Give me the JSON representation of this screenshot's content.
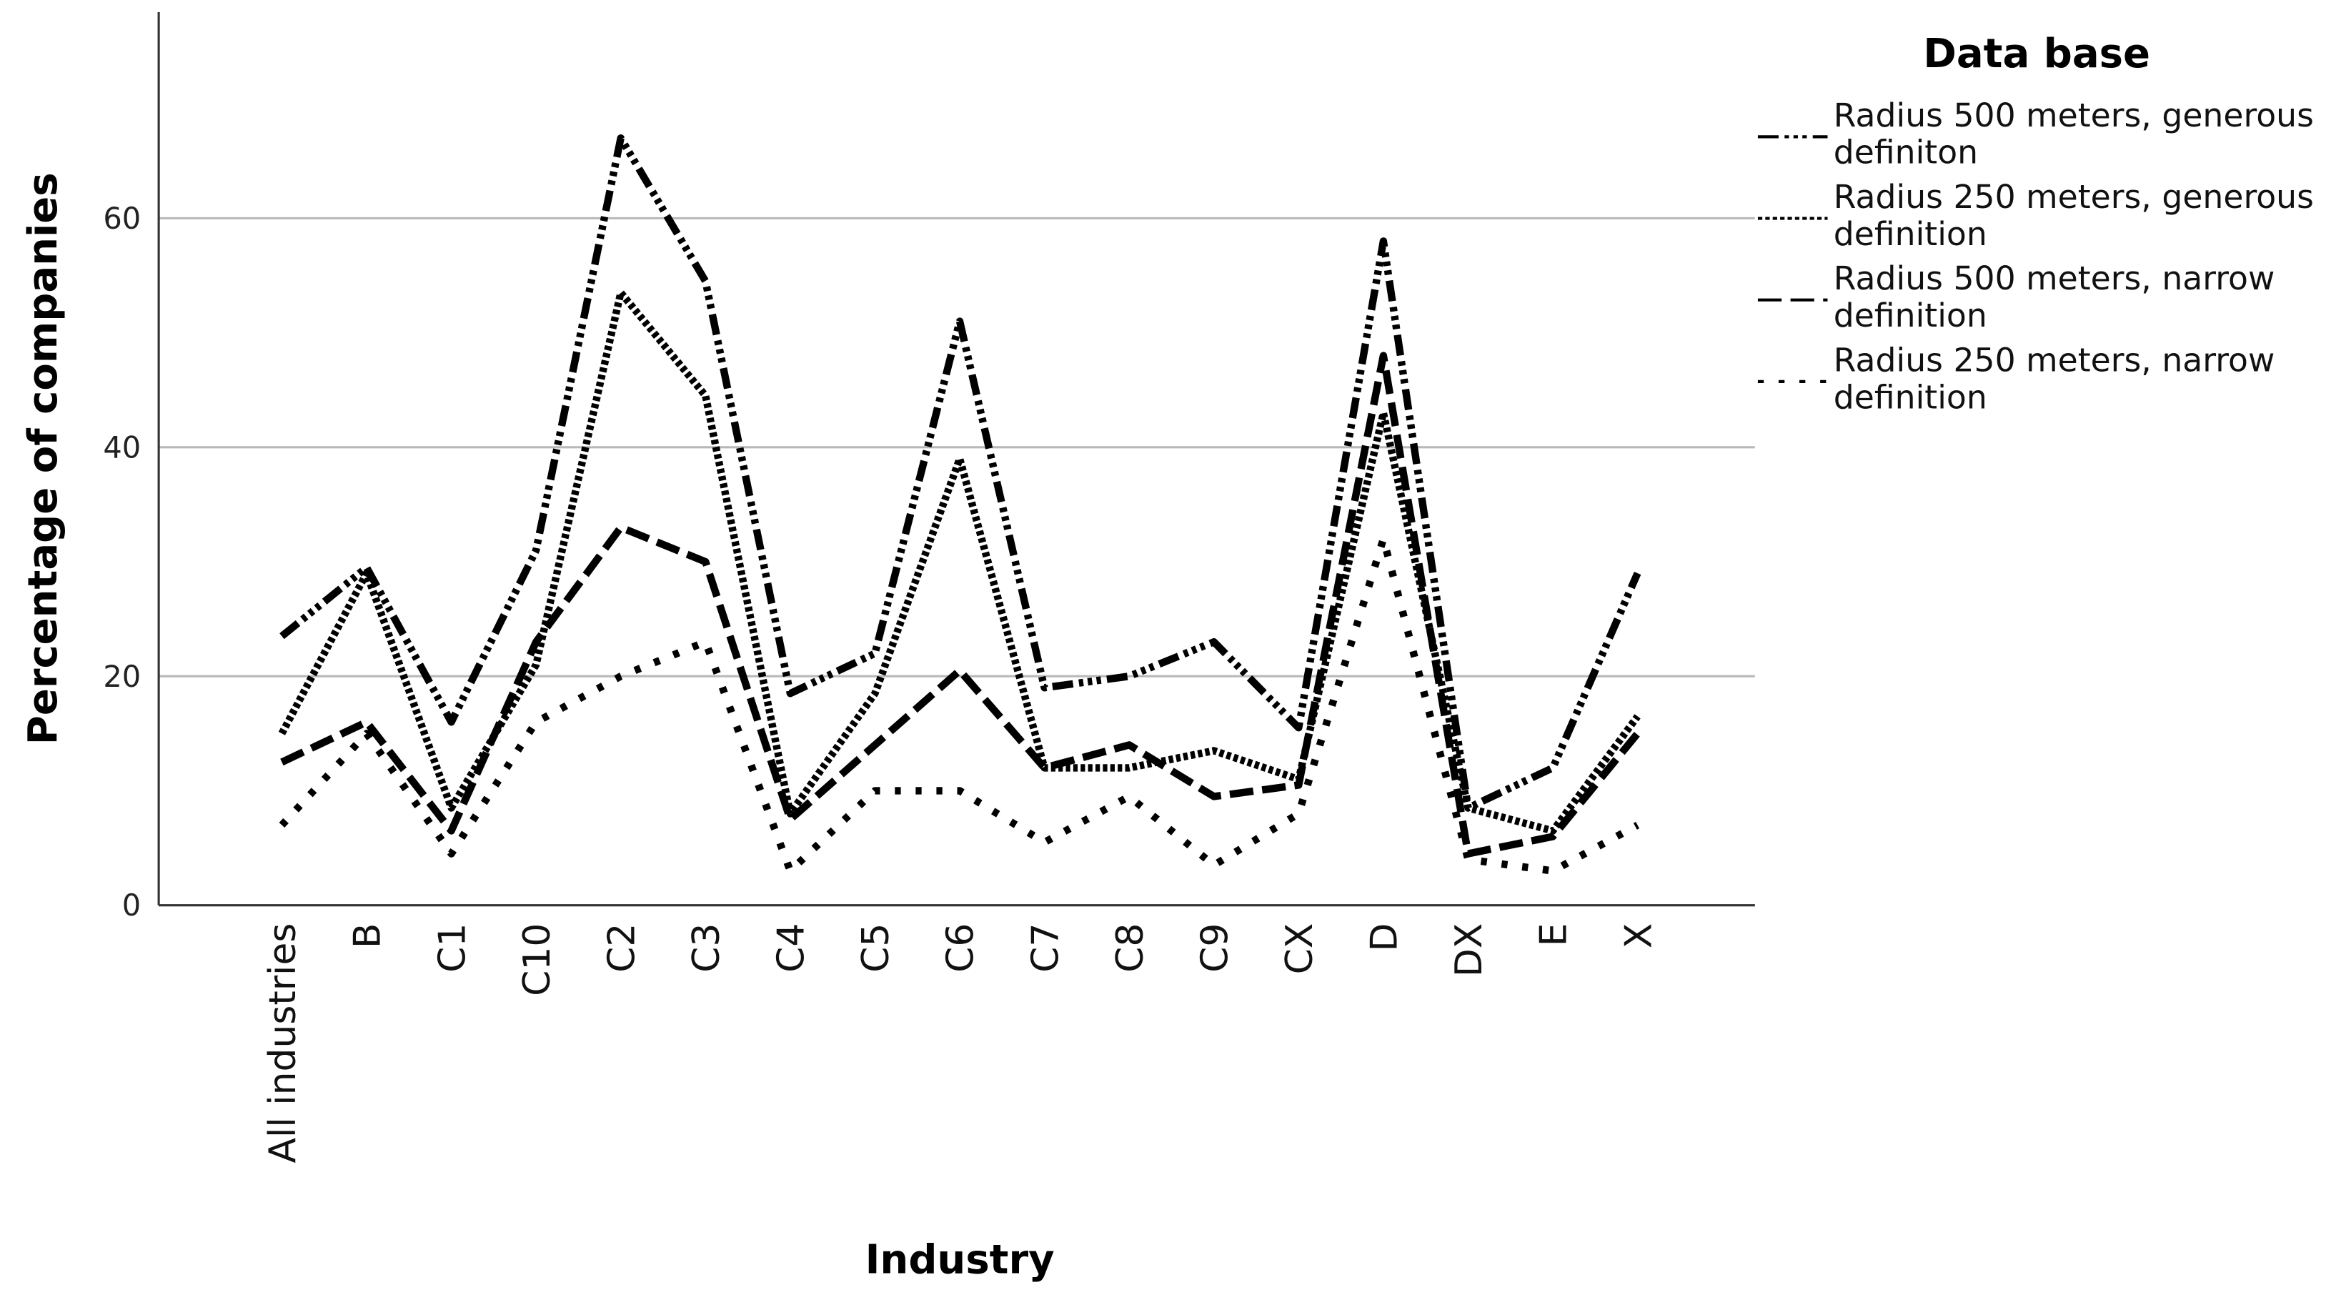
{
  "chart_data": {
    "type": "line",
    "x_label": "Industry",
    "y_label": "Percentage of companies",
    "legend_title": "Data base",
    "legend": "right",
    "grid": true,
    "categories": [
      "All industries",
      "B",
      "C1",
      "C10",
      "C2",
      "C3",
      "C4",
      "C5",
      "C6",
      "C7",
      "C8",
      "C9",
      "CX",
      "D",
      "DX",
      "E",
      "X"
    ],
    "ylim": [
      0,
      78
    ],
    "yticks": [
      0,
      20,
      40,
      60
    ],
    "series": [
      {
        "name": "Radius 500 meters, generous definiton",
        "color": "#000000",
        "dash": "14 4 3 3 3 3 3 4",
        "values": [
          23.5,
          29.5,
          16,
          31,
          67,
          54.5,
          18.5,
          22,
          51,
          19,
          20,
          23,
          15.5,
          58,
          8.5,
          12,
          29
        ]
      },
      {
        "name": "Radius 250 meters, generous definition",
        "color": "#000000",
        "dash": "3 2",
        "values": [
          15,
          29,
          8.5,
          21,
          53.5,
          44.5,
          8,
          18.5,
          39,
          12,
          12,
          13.5,
          11,
          43,
          8.5,
          6.5,
          16.5
        ]
      },
      {
        "name": "Radius 500 meters, narrow definition",
        "color": "#000000",
        "dash": "16 6",
        "values": [
          12.5,
          16,
          6.5,
          23,
          33,
          30,
          7.5,
          14,
          20.5,
          12,
          14,
          9.5,
          10.5,
          48,
          4.5,
          6,
          15
        ]
      },
      {
        "name": "Radius 250 meters, narrow definition",
        "color": "#000000",
        "dash": "4 10",
        "values": [
          7,
          15,
          4.5,
          16,
          20,
          23,
          3,
          10,
          10,
          5.5,
          9.5,
          3.5,
          8,
          32,
          4,
          3,
          7
        ]
      }
    ]
  }
}
